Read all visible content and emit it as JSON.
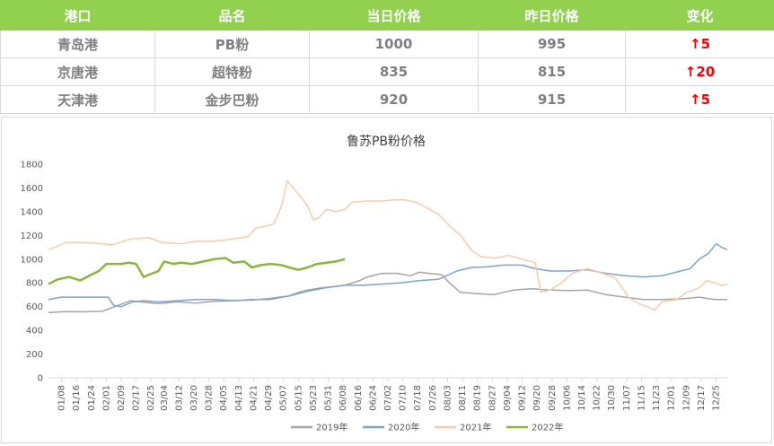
{
  "table": {
    "headers": [
      "港口",
      "品名",
      "当日价格",
      "昨日价格",
      "变化"
    ],
    "rows": [
      {
        "port": "青岛港",
        "product": "PB粉",
        "today": "1000",
        "yesterday": "995",
        "change": "5"
      },
      {
        "port": "京唐港",
        "product": "超特粉",
        "today": "835",
        "yesterday": "815",
        "change": "20"
      },
      {
        "port": "天津港",
        "product": "金步巴粉",
        "today": "920",
        "yesterday": "915",
        "change": "5"
      }
    ],
    "up_arrow": "↑"
  },
  "colors": {
    "header_bg": "#92d050",
    "change_up": "#ff0000"
  },
  "chart_data": {
    "type": "line",
    "title": "鲁苏PB粉价格",
    "ylim": [
      0,
      1800
    ],
    "yticks": [
      0,
      200,
      400,
      600,
      800,
      1000,
      1200,
      1400,
      1600,
      1800
    ],
    "xlim": [
      1,
      365
    ],
    "x_unit": "day of year",
    "xtick_labels": [
      "01/08",
      "01/16",
      "01/24",
      "02/01",
      "02/09",
      "02/17",
      "02/25",
      "03/04",
      "03/12",
      "03/20",
      "03/28",
      "04/05",
      "04/13",
      "04/21",
      "04/29",
      "05/07",
      "05/15",
      "05/23",
      "05/31",
      "06/08",
      "06/16",
      "06/24",
      "07/02",
      "07/10",
      "07/18",
      "07/26",
      "08/03",
      "08/11",
      "08/19",
      "08/27",
      "09/04",
      "09/12",
      "09/20",
      "09/28",
      "10/06",
      "10/14",
      "10/22",
      "10/30",
      "11/07",
      "11/15",
      "11/23",
      "12/01",
      "12/09",
      "12/17",
      "12/25"
    ],
    "xtick_days": [
      8,
      16,
      24,
      32,
      40,
      48,
      56,
      63,
      71,
      79,
      87,
      95,
      103,
      111,
      119,
      127,
      135,
      143,
      151,
      159,
      167,
      175,
      183,
      191,
      199,
      207,
      215,
      223,
      231,
      239,
      247,
      255,
      263,
      271,
      279,
      287,
      295,
      303,
      311,
      319,
      327,
      335,
      343,
      351,
      359
    ],
    "legend_position": "bottom",
    "grid": false,
    "series": [
      {
        "name": "2019年",
        "color": "#a5a5a5",
        "points": [
          [
            1,
            550
          ],
          [
            10,
            558
          ],
          [
            20,
            556
          ],
          [
            30,
            562
          ],
          [
            35,
            590
          ],
          [
            45,
            650
          ],
          [
            50,
            640
          ],
          [
            60,
            625
          ],
          [
            70,
            640
          ],
          [
            80,
            630
          ],
          [
            90,
            645
          ],
          [
            100,
            650
          ],
          [
            110,
            655
          ],
          [
            120,
            670
          ],
          [
            130,
            690
          ],
          [
            135,
            720
          ],
          [
            140,
            740
          ],
          [
            148,
            760
          ],
          [
            155,
            770
          ],
          [
            160,
            780
          ],
          [
            168,
            820
          ],
          [
            172,
            850
          ],
          [
            180,
            880
          ],
          [
            188,
            880
          ],
          [
            195,
            860
          ],
          [
            200,
            890
          ],
          [
            205,
            880
          ],
          [
            212,
            870
          ],
          [
            216,
            800
          ],
          [
            222,
            720
          ],
          [
            230,
            710
          ],
          [
            240,
            700
          ],
          [
            250,
            740
          ],
          [
            260,
            750
          ],
          [
            270,
            740
          ],
          [
            280,
            735
          ],
          [
            290,
            740
          ],
          [
            300,
            700
          ],
          [
            310,
            680
          ],
          [
            320,
            660
          ],
          [
            330,
            660
          ],
          [
            340,
            665
          ],
          [
            350,
            680
          ],
          [
            358,
            660
          ],
          [
            365,
            660
          ]
        ]
      },
      {
        "name": "2020年",
        "color": "#7ea3ce",
        "points": [
          [
            1,
            660
          ],
          [
            8,
            680
          ],
          [
            15,
            680
          ],
          [
            25,
            680
          ],
          [
            33,
            680
          ],
          [
            36,
            610
          ],
          [
            40,
            600
          ],
          [
            46,
            640
          ],
          [
            52,
            650
          ],
          [
            60,
            640
          ],
          [
            70,
            650
          ],
          [
            80,
            660
          ],
          [
            90,
            660
          ],
          [
            100,
            650
          ],
          [
            110,
            660
          ],
          [
            120,
            660
          ],
          [
            130,
            690
          ],
          [
            140,
            730
          ],
          [
            150,
            760
          ],
          [
            160,
            780
          ],
          [
            170,
            780
          ],
          [
            180,
            790
          ],
          [
            190,
            800
          ],
          [
            200,
            820
          ],
          [
            210,
            830
          ],
          [
            220,
            900
          ],
          [
            228,
            930
          ],
          [
            236,
            935
          ],
          [
            245,
            950
          ],
          [
            255,
            950
          ],
          [
            262,
            920
          ],
          [
            270,
            900
          ],
          [
            280,
            900
          ],
          [
            290,
            910
          ],
          [
            300,
            880
          ],
          [
            310,
            860
          ],
          [
            320,
            850
          ],
          [
            330,
            860
          ],
          [
            340,
            900
          ],
          [
            345,
            920
          ],
          [
            350,
            1000
          ],
          [
            355,
            1050
          ],
          [
            359,
            1130
          ],
          [
            362,
            1100
          ],
          [
            365,
            1080
          ]
        ]
      },
      {
        "name": "2021年",
        "color": "#f8cbad",
        "points": [
          [
            1,
            1080
          ],
          [
            6,
            1110
          ],
          [
            10,
            1140
          ],
          [
            20,
            1140
          ],
          [
            30,
            1130
          ],
          [
            35,
            1120
          ],
          [
            45,
            1170
          ],
          [
            55,
            1180
          ],
          [
            62,
            1140
          ],
          [
            72,
            1130
          ],
          [
            80,
            1150
          ],
          [
            90,
            1150
          ],
          [
            100,
            1170
          ],
          [
            108,
            1190
          ],
          [
            112,
            1260
          ],
          [
            118,
            1280
          ],
          [
            122,
            1300
          ],
          [
            126,
            1450
          ],
          [
            129,
            1660
          ],
          [
            131,
            1620
          ],
          [
            136,
            1530
          ],
          [
            140,
            1450
          ],
          [
            143,
            1330
          ],
          [
            146,
            1350
          ],
          [
            150,
            1420
          ],
          [
            155,
            1400
          ],
          [
            160,
            1420
          ],
          [
            164,
            1480
          ],
          [
            172,
            1490
          ],
          [
            180,
            1490
          ],
          [
            186,
            1500
          ],
          [
            192,
            1500
          ],
          [
            198,
            1480
          ],
          [
            204,
            1430
          ],
          [
            210,
            1380
          ],
          [
            216,
            1280
          ],
          [
            222,
            1200
          ],
          [
            228,
            1070
          ],
          [
            233,
            1020
          ],
          [
            240,
            1010
          ],
          [
            248,
            1030
          ],
          [
            255,
            1000
          ],
          [
            262,
            970
          ],
          [
            265,
            720
          ],
          [
            270,
            740
          ],
          [
            276,
            800
          ],
          [
            282,
            880
          ],
          [
            290,
            920
          ],
          [
            298,
            880
          ],
          [
            305,
            840
          ],
          [
            312,
            680
          ],
          [
            318,
            620
          ],
          [
            322,
            600
          ],
          [
            326,
            570
          ],
          [
            330,
            640
          ],
          [
            338,
            660
          ],
          [
            343,
            720
          ],
          [
            347,
            740
          ],
          [
            350,
            760
          ],
          [
            354,
            820
          ],
          [
            358,
            800
          ],
          [
            362,
            780
          ],
          [
            365,
            790
          ]
        ]
      },
      {
        "name": "2022年",
        "color": "#8ab53f",
        "points": [
          [
            1,
            790
          ],
          [
            6,
            830
          ],
          [
            12,
            850
          ],
          [
            18,
            820
          ],
          [
            24,
            870
          ],
          [
            28,
            900
          ],
          [
            32,
            960
          ],
          [
            40,
            960
          ],
          [
            44,
            970
          ],
          [
            48,
            960
          ],
          [
            52,
            850
          ],
          [
            55,
            870
          ],
          [
            60,
            900
          ],
          [
            63,
            980
          ],
          [
            68,
            960
          ],
          [
            72,
            970
          ],
          [
            78,
            960
          ],
          [
            84,
            980
          ],
          [
            90,
            1000
          ],
          [
            96,
            1010
          ],
          [
            100,
            970
          ],
          [
            106,
            980
          ],
          [
            110,
            930
          ],
          [
            115,
            950
          ],
          [
            120,
            960
          ],
          [
            126,
            950
          ],
          [
            130,
            930
          ],
          [
            135,
            910
          ],
          [
            140,
            930
          ],
          [
            145,
            960
          ],
          [
            150,
            970
          ],
          [
            155,
            980
          ],
          [
            160,
            1000
          ]
        ]
      }
    ]
  }
}
